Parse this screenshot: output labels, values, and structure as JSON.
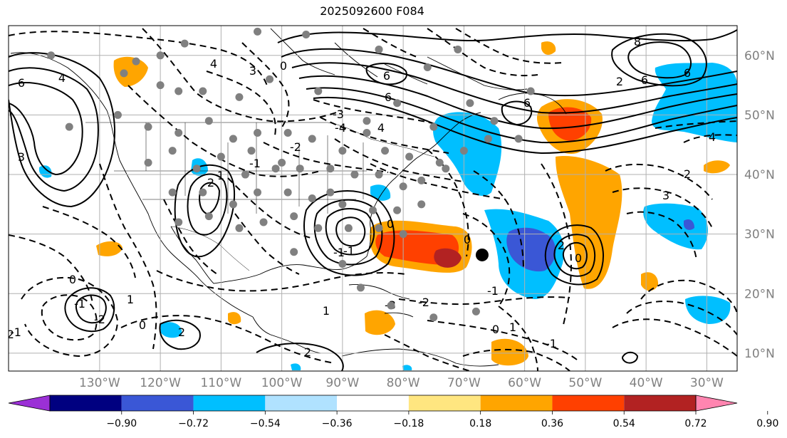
{
  "title": "2025092600 F084",
  "map": {
    "projection": "PlateCarree",
    "lon_range": [
      -145,
      -25
    ],
    "lat_range": [
      7,
      65
    ],
    "lon_ticks": [
      "130°W",
      "120°W",
      "110°W",
      "100°W",
      "90°W",
      "80°W",
      "70°W",
      "60°W",
      "50°W",
      "40°W",
      "30°W"
    ],
    "lat_ticks": [
      "60°N",
      "50°N",
      "40°N",
      "30°N",
      "20°N",
      "10°N"
    ],
    "grid": true
  },
  "colorbar": {
    "labels": [
      "−0.90",
      "−0.72",
      "−0.54",
      "−0.36",
      "−0.18",
      "0.18",
      "0.36",
      "0.54",
      "0.72",
      "0.90"
    ],
    "colors": [
      "#9b30d6",
      "#000080",
      "#3a57d6",
      "#00bfff",
      "#b0e2ff",
      "#ffffff",
      "#ffe680",
      "#ffa500",
      "#ff4000",
      "#b22222",
      "#ff85b0"
    ],
    "extend": "both"
  },
  "contour_labels": [
    "6",
    "4",
    "3",
    "6",
    "6",
    "4",
    "3",
    "4",
    "6",
    "8",
    "6",
    "-3",
    "-4",
    "-2",
    "-1",
    "0",
    "1",
    "2",
    "0",
    "-1",
    "-2",
    "0",
    "1",
    "2",
    "-1",
    "-2",
    "0",
    "-1",
    "2",
    "1",
    "-1",
    "0",
    "2",
    "-3",
    "-2",
    "-1",
    "0",
    "1",
    "-1",
    "0",
    "2",
    "6",
    "4",
    "3",
    "2"
  ],
  "markers": {
    "storm_center": {
      "lon": -67,
      "lat": 26.5,
      "color": "#000000"
    },
    "station_color": "#808080"
  }
}
